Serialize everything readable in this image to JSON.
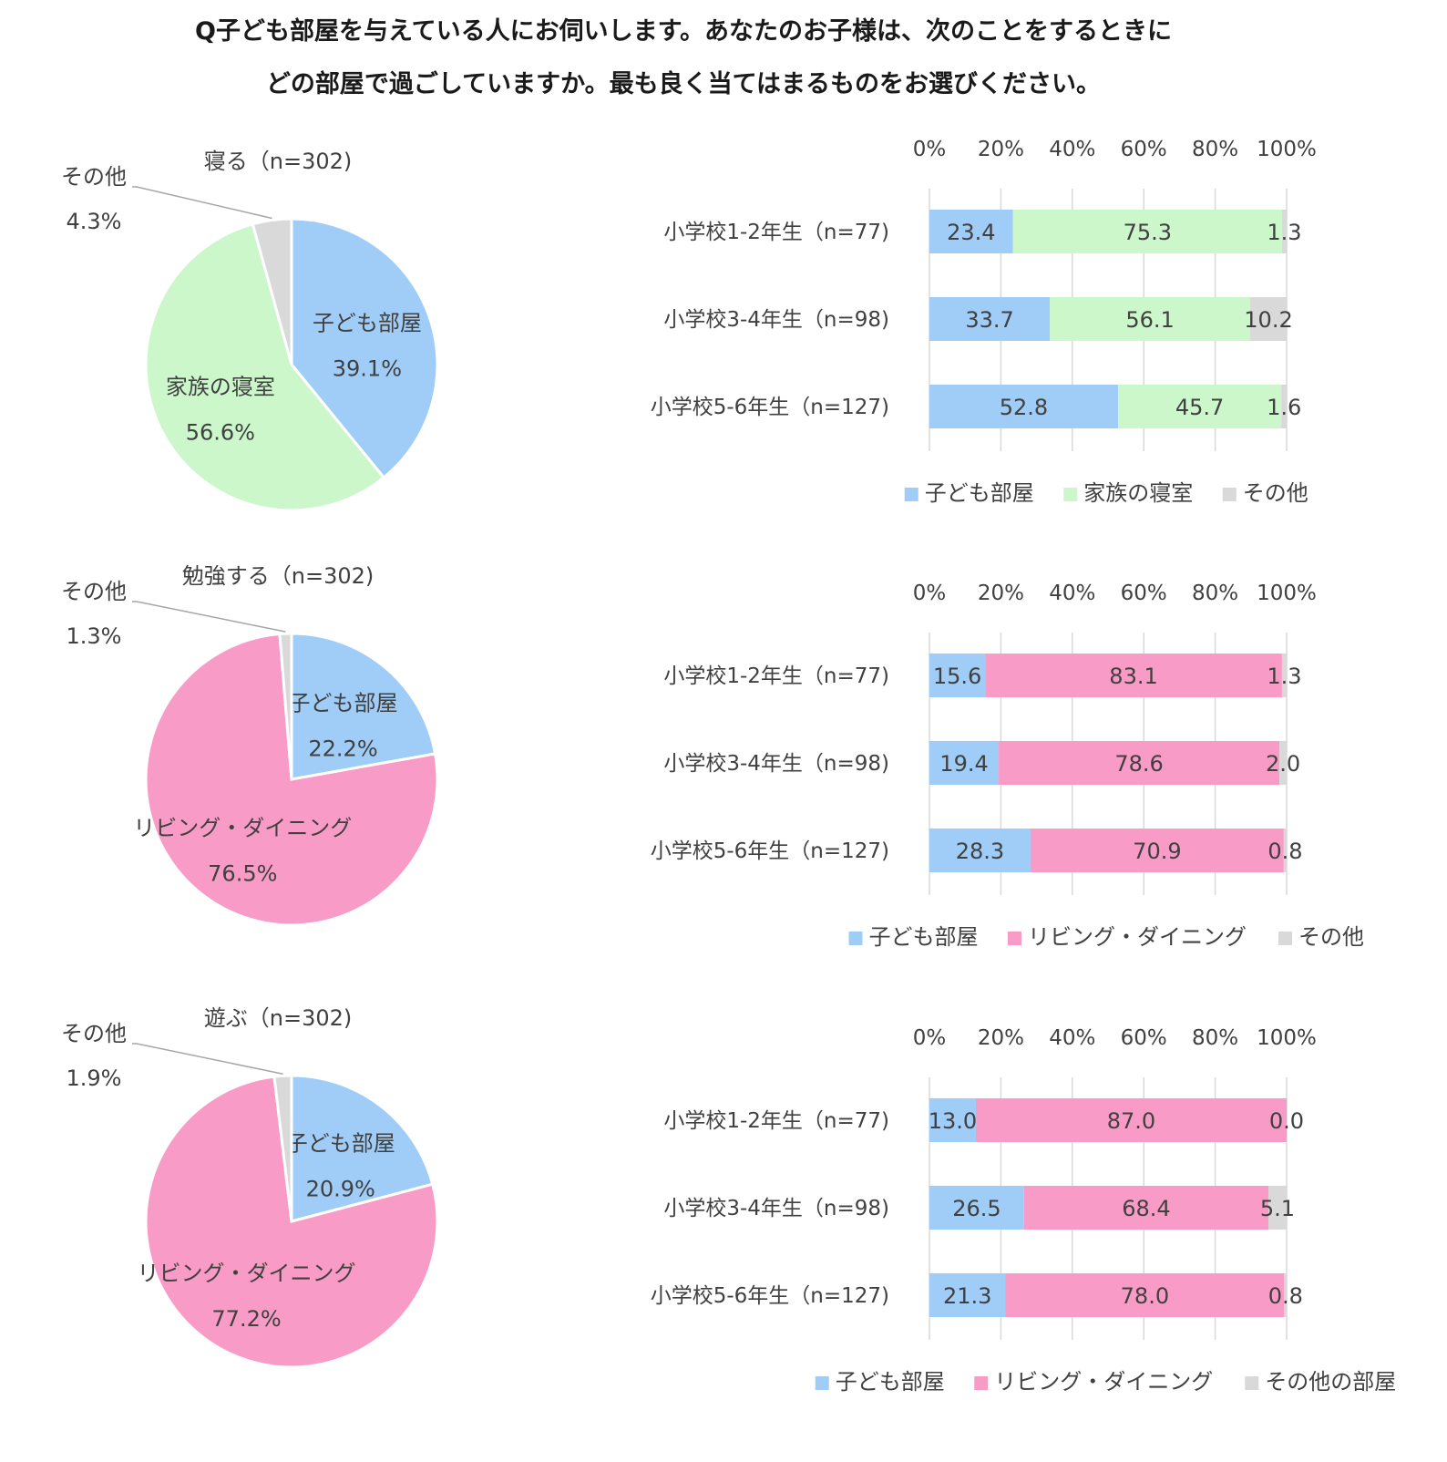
{
  "title": {
    "line1": "Q子ども部屋を与えている人にお伺いします。あなたのお子様は、次のことをするときに",
    "line2": "どの部屋で過ごしていますか。最も良く当てはまるものをお選びください。"
  },
  "colors": {
    "kodomo": "#9fcdf7",
    "kazoku": "#ccf7cb",
    "living": "#f89cc7",
    "other": "#d9d9d9",
    "grid": "#d9d9d9",
    "text": "#404040"
  },
  "chart_data": [
    {
      "type": "pie",
      "title": "寝る（n=302)",
      "slices": [
        {
          "label": "子ども部屋",
          "value": 39.1,
          "value_label": "39.1%",
          "color_key": "kodomo"
        },
        {
          "label": "家族の寝室",
          "value": 56.6,
          "value_label": "56.6%",
          "color_key": "kazoku"
        },
        {
          "label": "その他",
          "value": 4.3,
          "value_label": "4.3%",
          "color_key": "other"
        }
      ]
    },
    {
      "type": "bar",
      "orientation": "horizontal",
      "stacked": true,
      "x_ticks": [
        "0%",
        "20%",
        "40%",
        "60%",
        "80%",
        "100%"
      ],
      "xlim": [
        0,
        100
      ],
      "categories": [
        "小学校1-2年生（n=77)",
        "小学校3-4年生（n=98)",
        "小学校5-6年生（n=127)"
      ],
      "series": [
        {
          "name": "子ども部屋",
          "color_key": "kodomo",
          "values": [
            23.4,
            33.7,
            52.8
          ],
          "labels": [
            "23.4",
            "33.7",
            "52.8"
          ]
        },
        {
          "name": "家族の寝室",
          "color_key": "kazoku",
          "values": [
            75.3,
            56.1,
            45.7
          ],
          "labels": [
            "75.3",
            "56.1",
            "45.7"
          ]
        },
        {
          "name": "その他",
          "color_key": "other",
          "values": [
            1.3,
            10.2,
            1.6
          ],
          "labels": [
            "1.3",
            "10.2",
            "1.6"
          ]
        }
      ],
      "legend_position": "bottom"
    },
    {
      "type": "pie",
      "title": "勉強する（n=302)",
      "slices": [
        {
          "label": "子ども部屋",
          "value": 22.2,
          "value_label": "22.2%",
          "color_key": "kodomo"
        },
        {
          "label": "リビング・ダイニング",
          "value": 76.5,
          "value_label": "76.5%",
          "color_key": "living"
        },
        {
          "label": "その他",
          "value": 1.3,
          "value_label": "1.3%",
          "color_key": "other"
        }
      ]
    },
    {
      "type": "bar",
      "orientation": "horizontal",
      "stacked": true,
      "x_ticks": [
        "0%",
        "20%",
        "40%",
        "60%",
        "80%",
        "100%"
      ],
      "xlim": [
        0,
        100
      ],
      "categories": [
        "小学校1-2年生（n=77)",
        "小学校3-4年生（n=98)",
        "小学校5-6年生（n=127)"
      ],
      "series": [
        {
          "name": "子ども部屋",
          "color_key": "kodomo",
          "values": [
            15.6,
            19.4,
            28.3
          ],
          "labels": [
            "15.6",
            "19.4",
            "28.3"
          ]
        },
        {
          "name": "リビング・ダイニング",
          "color_key": "living",
          "values": [
            83.1,
            78.6,
            70.9
          ],
          "labels": [
            "83.1",
            "78.6",
            "70.9"
          ]
        },
        {
          "name": "その他",
          "color_key": "other",
          "values": [
            1.3,
            2.0,
            0.8
          ],
          "labels": [
            "1.3",
            "2.0",
            "0.8"
          ]
        }
      ],
      "legend_position": "bottom"
    },
    {
      "type": "pie",
      "title": "遊ぶ（n=302)",
      "slices": [
        {
          "label": "子ども部屋",
          "value": 20.9,
          "value_label": "20.9%",
          "color_key": "kodomo"
        },
        {
          "label": "リビング・ダイニング",
          "value": 77.2,
          "value_label": "77.2%",
          "color_key": "living"
        },
        {
          "label": "その他",
          "value": 1.9,
          "value_label": "1.9%",
          "color_key": "other"
        }
      ]
    },
    {
      "type": "bar",
      "orientation": "horizontal",
      "stacked": true,
      "x_ticks": [
        "0%",
        "20%",
        "40%",
        "60%",
        "80%",
        "100%"
      ],
      "xlim": [
        0,
        100
      ],
      "categories": [
        "小学校1-2年生（n=77)",
        "小学校3-4年生（n=98)",
        "小学校5-6年生（n=127)"
      ],
      "series": [
        {
          "name": "子ども部屋",
          "color_key": "kodomo",
          "values": [
            13.0,
            26.5,
            21.3
          ],
          "labels": [
            "13.0",
            "26.5",
            "21.3"
          ]
        },
        {
          "name": "リビング・ダイニング",
          "color_key": "living",
          "values": [
            87.0,
            68.4,
            78.0
          ],
          "labels": [
            "87.0",
            "68.4",
            "78.0"
          ]
        },
        {
          "name": "その他の部屋",
          "color_key": "other",
          "values": [
            0.0,
            5.1,
            0.8
          ],
          "labels": [
            "0.0",
            "5.1",
            "0.8"
          ]
        }
      ],
      "legend_position": "bottom"
    }
  ]
}
